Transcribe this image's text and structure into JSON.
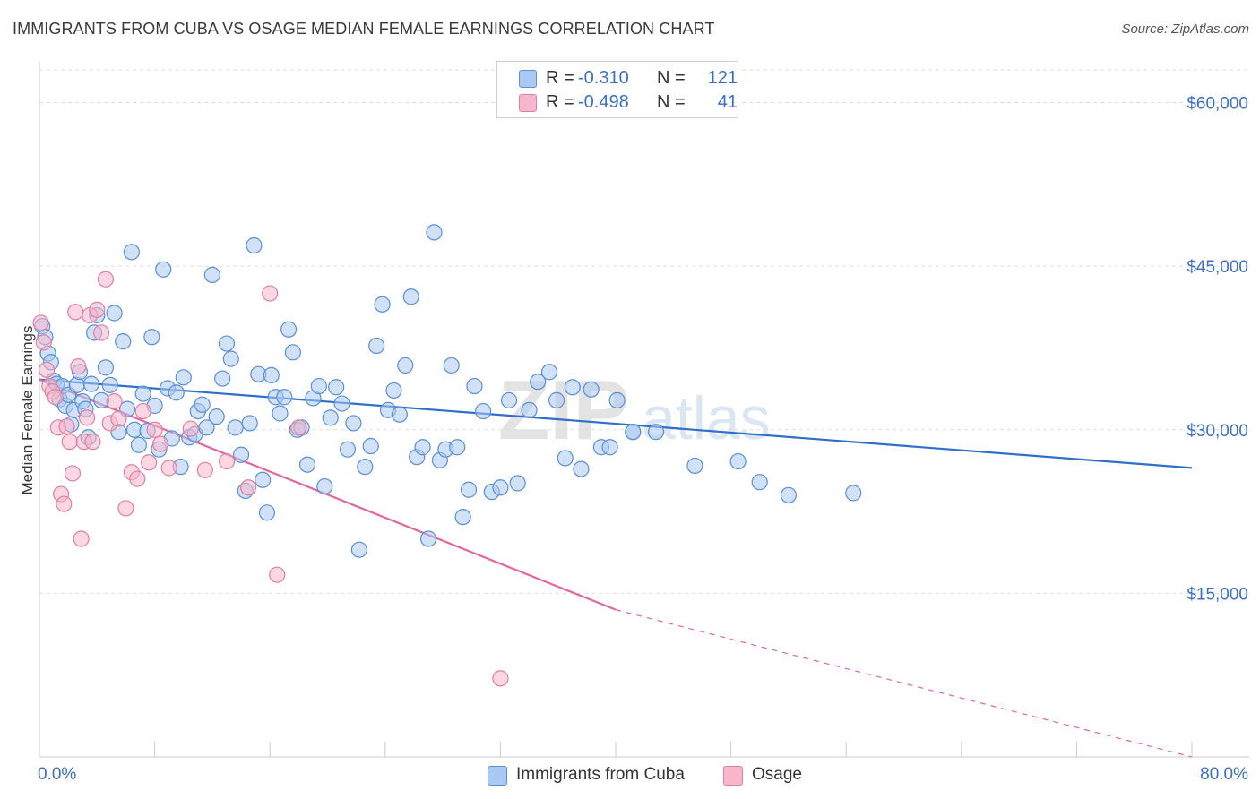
{
  "header": {
    "title": "IMMIGRANTS FROM CUBA VS OSAGE MEDIAN FEMALE EARNINGS CORRELATION CHART",
    "source": "Source: ZipAtlas.com"
  },
  "legend_top": [
    {
      "r_label": "R =",
      "r_value": "-0.310",
      "n_label": "N =",
      "n_value": "121",
      "color": "#a9c8f2"
    },
    {
      "r_label": "R =",
      "r_value": "-0.498",
      "n_label": "N =",
      "n_value": "41",
      "color": "#f7b6cb"
    }
  ],
  "legend_bottom": [
    {
      "label": "Immigrants from Cuba",
      "color": "#a9c8f2"
    },
    {
      "label": "Osage",
      "color": "#f7b6cb"
    }
  ],
  "watermark": {
    "part1": "ZIP",
    "part2": "atlas"
  },
  "chart_data": {
    "type": "scatter",
    "title": "IMMIGRANTS FROM CUBA VS OSAGE MEDIAN FEMALE EARNINGS CORRELATION CHART",
    "xlabel": "",
    "ylabel": "Median Female Earnings",
    "xlim": [
      0,
      80
    ],
    "ylim": [
      0,
      63000
    ],
    "x_tick_labels": [
      {
        "value": 0,
        "label": "0.0%"
      },
      {
        "value": 80,
        "label": "80.0%"
      }
    ],
    "y_ticks": [
      {
        "value": 15000,
        "label": "$15,000"
      },
      {
        "value": 30000,
        "label": "$30,000"
      },
      {
        "value": 45000,
        "label": "$45,000"
      },
      {
        "value": 60000,
        "label": "$60,000"
      }
    ],
    "grid": true,
    "legend_position": "top-center",
    "colors": {
      "cuba_fill": "#a9c8f2",
      "cuba_edge": "#5b8fd6",
      "cuba_line": "#2f6ecb",
      "osage_fill": "#f7b6cb",
      "osage_edge": "#e17fa2",
      "osage_line": "#e0689a",
      "tick_label": "#3a6fc4",
      "grid": "#dddddd"
    },
    "series": [
      {
        "name": "Immigrants from Cuba",
        "r": -0.31,
        "n": 121,
        "trend": {
          "x": [
            0,
            80
          ],
          "y": [
            34600,
            26500
          ]
        },
        "points": [
          [
            0.2,
            39500
          ],
          [
            0.4,
            38500
          ],
          [
            0.6,
            37000
          ],
          [
            0.8,
            36200
          ],
          [
            1.0,
            34500
          ],
          [
            1.2,
            34200
          ],
          [
            1.4,
            32800
          ],
          [
            1.6,
            34000
          ],
          [
            1.8,
            32200
          ],
          [
            2.0,
            33200
          ],
          [
            2.2,
            30500
          ],
          [
            2.4,
            31800
          ],
          [
            2.6,
            34100
          ],
          [
            2.8,
            35300
          ],
          [
            3.0,
            32600
          ],
          [
            3.2,
            31900
          ],
          [
            3.4,
            29300
          ],
          [
            3.6,
            34200
          ],
          [
            3.8,
            38900
          ],
          [
            4.0,
            40500
          ],
          [
            4.3,
            32700
          ],
          [
            4.6,
            35700
          ],
          [
            4.9,
            34100
          ],
          [
            5.2,
            40700
          ],
          [
            5.5,
            29800
          ],
          [
            5.8,
            38100
          ],
          [
            6.1,
            31900
          ],
          [
            6.4,
            46300
          ],
          [
            6.6,
            30000
          ],
          [
            6.9,
            28600
          ],
          [
            7.2,
            33300
          ],
          [
            7.5,
            29900
          ],
          [
            7.8,
            38500
          ],
          [
            8.0,
            32200
          ],
          [
            8.3,
            28200
          ],
          [
            8.6,
            44700
          ],
          [
            8.9,
            33800
          ],
          [
            9.2,
            29200
          ],
          [
            9.5,
            33400
          ],
          [
            9.8,
            26600
          ],
          [
            10.0,
            34800
          ],
          [
            10.4,
            29300
          ],
          [
            10.8,
            29600
          ],
          [
            11.0,
            31700
          ],
          [
            11.3,
            32300
          ],
          [
            11.6,
            30200
          ],
          [
            12.0,
            44200
          ],
          [
            12.3,
            31200
          ],
          [
            12.7,
            34700
          ],
          [
            13.0,
            37900
          ],
          [
            13.3,
            36500
          ],
          [
            13.6,
            30200
          ],
          [
            14.0,
            27700
          ],
          [
            14.3,
            24400
          ],
          [
            14.6,
            30600
          ],
          [
            14.9,
            46900
          ],
          [
            15.2,
            35100
          ],
          [
            15.5,
            25400
          ],
          [
            15.8,
            22400
          ],
          [
            16.1,
            35000
          ],
          [
            16.4,
            33000
          ],
          [
            16.7,
            31500
          ],
          [
            17.0,
            33000
          ],
          [
            17.3,
            39200
          ],
          [
            17.6,
            37100
          ],
          [
            17.9,
            30000
          ],
          [
            18.2,
            30200
          ],
          [
            18.6,
            26800
          ],
          [
            19.0,
            32900
          ],
          [
            19.4,
            34000
          ],
          [
            19.8,
            24800
          ],
          [
            20.2,
            31100
          ],
          [
            20.6,
            33900
          ],
          [
            21.0,
            32400
          ],
          [
            21.4,
            28200
          ],
          [
            21.8,
            30600
          ],
          [
            22.2,
            19000
          ],
          [
            22.6,
            26600
          ],
          [
            23.0,
            28500
          ],
          [
            23.4,
            37700
          ],
          [
            23.8,
            41500
          ],
          [
            24.2,
            31800
          ],
          [
            24.6,
            33600
          ],
          [
            25.0,
            31400
          ],
          [
            25.4,
            35900
          ],
          [
            25.8,
            42200
          ],
          [
            26.2,
            27500
          ],
          [
            26.6,
            28400
          ],
          [
            27.0,
            20000
          ],
          [
            27.4,
            48100
          ],
          [
            27.8,
            27200
          ],
          [
            28.2,
            28200
          ],
          [
            28.6,
            35900
          ],
          [
            29.0,
            28400
          ],
          [
            29.4,
            22000
          ],
          [
            29.8,
            24500
          ],
          [
            30.2,
            34000
          ],
          [
            30.8,
            31700
          ],
          [
            31.4,
            24300
          ],
          [
            32.0,
            24700
          ],
          [
            32.6,
            32700
          ],
          [
            33.2,
            25100
          ],
          [
            34.0,
            31800
          ],
          [
            34.6,
            34400
          ],
          [
            35.4,
            35300
          ],
          [
            35.9,
            32700
          ],
          [
            36.5,
            27400
          ],
          [
            37.0,
            33900
          ],
          [
            37.6,
            26400
          ],
          [
            38.3,
            33700
          ],
          [
            39.0,
            28400
          ],
          [
            39.6,
            28400
          ],
          [
            40.1,
            32700
          ],
          [
            41.2,
            29800
          ],
          [
            41.2,
            29800
          ],
          [
            42.8,
            29800
          ],
          [
            45.5,
            26700
          ],
          [
            48.5,
            27100
          ],
          [
            50.0,
            25200
          ],
          [
            52.0,
            24000
          ],
          [
            56.5,
            24200
          ]
        ]
      },
      {
        "name": "Osage",
        "r": -0.498,
        "n": 41,
        "trend": {
          "x": [
            0,
            40
          ],
          "y": [
            34600,
            13500
          ]
        },
        "trend_dashed": {
          "x": [
            40,
            80
          ],
          "y": [
            13500,
            0
          ]
        },
        "points": [
          [
            0.1,
            39800
          ],
          [
            0.3,
            38000
          ],
          [
            0.5,
            35500
          ],
          [
            0.7,
            34000
          ],
          [
            0.9,
            33500
          ],
          [
            1.1,
            33000
          ],
          [
            1.3,
            30200
          ],
          [
            1.5,
            24100
          ],
          [
            1.7,
            23200
          ],
          [
            1.9,
            30300
          ],
          [
            2.1,
            28900
          ],
          [
            2.3,
            26000
          ],
          [
            2.5,
            40800
          ],
          [
            2.7,
            35800
          ],
          [
            2.9,
            20000
          ],
          [
            3.1,
            28900
          ],
          [
            3.3,
            31100
          ],
          [
            3.5,
            40500
          ],
          [
            3.7,
            28900
          ],
          [
            4.0,
            41000
          ],
          [
            4.3,
            38900
          ],
          [
            4.6,
            43800
          ],
          [
            4.9,
            30600
          ],
          [
            5.2,
            32600
          ],
          [
            5.5,
            31000
          ],
          [
            6.0,
            22800
          ],
          [
            6.4,
            26100
          ],
          [
            6.8,
            25500
          ],
          [
            7.2,
            31700
          ],
          [
            7.6,
            27000
          ],
          [
            8.0,
            30000
          ],
          [
            8.4,
            28700
          ],
          [
            9.0,
            26500
          ],
          [
            10.5,
            30100
          ],
          [
            11.5,
            26300
          ],
          [
            13.0,
            27100
          ],
          [
            14.5,
            24700
          ],
          [
            16.0,
            42500
          ],
          [
            16.5,
            16700
          ],
          [
            18.0,
            30200
          ],
          [
            32.0,
            7200
          ]
        ]
      }
    ]
  }
}
